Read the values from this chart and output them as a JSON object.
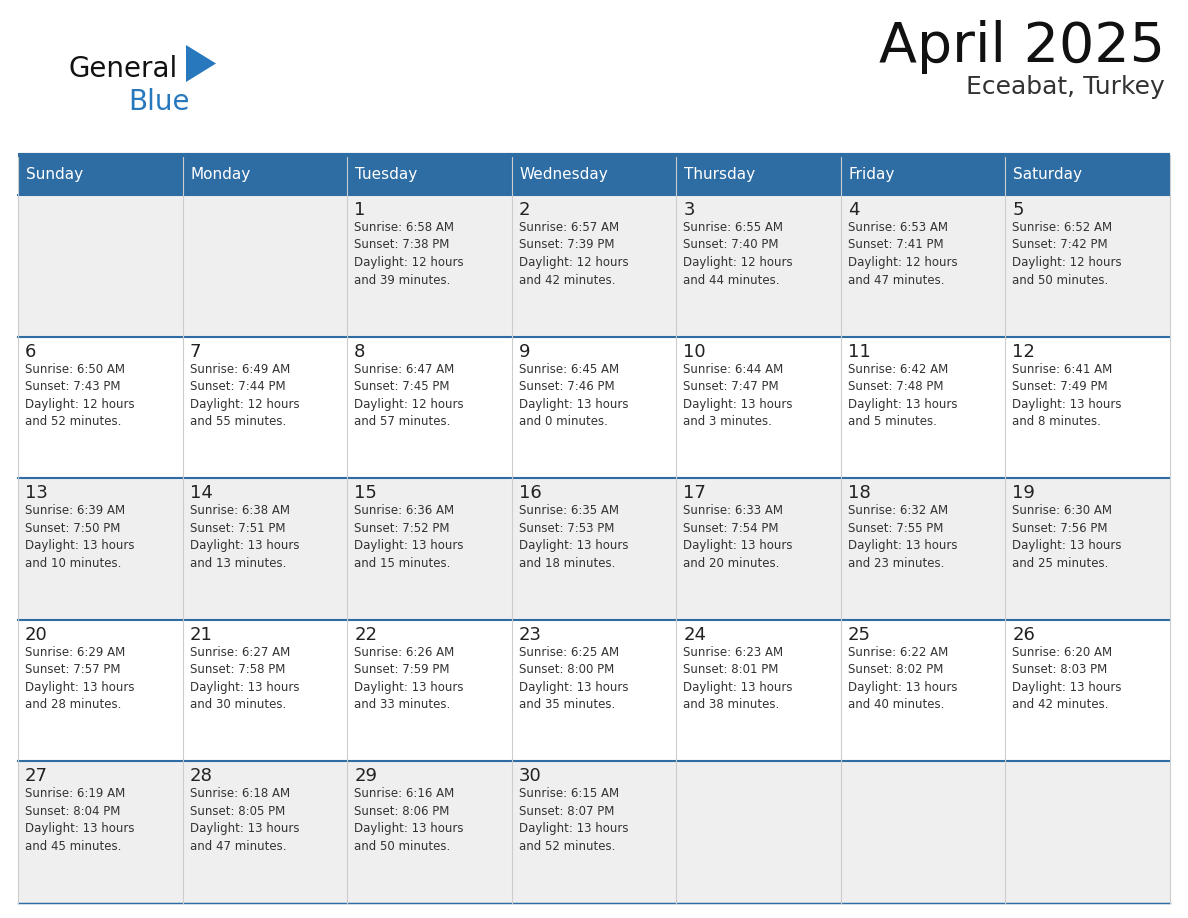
{
  "title": "April 2025",
  "subtitle": "Eceabat, Turkey",
  "header_bg": "#2E6DA4",
  "header_text": "#FFFFFF",
  "cell_bg_odd": "#EFEFEF",
  "cell_bg_even": "#FFFFFF",
  "day_number_color": "#222222",
  "text_color": "#333333",
  "border_color": "#2E6DA4",
  "row_line_color": "#2E6DA4",
  "col_line_color": "#CCCCCC",
  "days_of_week": [
    "Sunday",
    "Monday",
    "Tuesday",
    "Wednesday",
    "Thursday",
    "Friday",
    "Saturday"
  ],
  "calendar": [
    [
      {
        "day": null,
        "info": null
      },
      {
        "day": null,
        "info": null
      },
      {
        "day": 1,
        "info": "Sunrise: 6:58 AM\nSunset: 7:38 PM\nDaylight: 12 hours\nand 39 minutes."
      },
      {
        "day": 2,
        "info": "Sunrise: 6:57 AM\nSunset: 7:39 PM\nDaylight: 12 hours\nand 42 minutes."
      },
      {
        "day": 3,
        "info": "Sunrise: 6:55 AM\nSunset: 7:40 PM\nDaylight: 12 hours\nand 44 minutes."
      },
      {
        "day": 4,
        "info": "Sunrise: 6:53 AM\nSunset: 7:41 PM\nDaylight: 12 hours\nand 47 minutes."
      },
      {
        "day": 5,
        "info": "Sunrise: 6:52 AM\nSunset: 7:42 PM\nDaylight: 12 hours\nand 50 minutes."
      }
    ],
    [
      {
        "day": 6,
        "info": "Sunrise: 6:50 AM\nSunset: 7:43 PM\nDaylight: 12 hours\nand 52 minutes."
      },
      {
        "day": 7,
        "info": "Sunrise: 6:49 AM\nSunset: 7:44 PM\nDaylight: 12 hours\nand 55 minutes."
      },
      {
        "day": 8,
        "info": "Sunrise: 6:47 AM\nSunset: 7:45 PM\nDaylight: 12 hours\nand 57 minutes."
      },
      {
        "day": 9,
        "info": "Sunrise: 6:45 AM\nSunset: 7:46 PM\nDaylight: 13 hours\nand 0 minutes."
      },
      {
        "day": 10,
        "info": "Sunrise: 6:44 AM\nSunset: 7:47 PM\nDaylight: 13 hours\nand 3 minutes."
      },
      {
        "day": 11,
        "info": "Sunrise: 6:42 AM\nSunset: 7:48 PM\nDaylight: 13 hours\nand 5 minutes."
      },
      {
        "day": 12,
        "info": "Sunrise: 6:41 AM\nSunset: 7:49 PM\nDaylight: 13 hours\nand 8 minutes."
      }
    ],
    [
      {
        "day": 13,
        "info": "Sunrise: 6:39 AM\nSunset: 7:50 PM\nDaylight: 13 hours\nand 10 minutes."
      },
      {
        "day": 14,
        "info": "Sunrise: 6:38 AM\nSunset: 7:51 PM\nDaylight: 13 hours\nand 13 minutes."
      },
      {
        "day": 15,
        "info": "Sunrise: 6:36 AM\nSunset: 7:52 PM\nDaylight: 13 hours\nand 15 minutes."
      },
      {
        "day": 16,
        "info": "Sunrise: 6:35 AM\nSunset: 7:53 PM\nDaylight: 13 hours\nand 18 minutes."
      },
      {
        "day": 17,
        "info": "Sunrise: 6:33 AM\nSunset: 7:54 PM\nDaylight: 13 hours\nand 20 minutes."
      },
      {
        "day": 18,
        "info": "Sunrise: 6:32 AM\nSunset: 7:55 PM\nDaylight: 13 hours\nand 23 minutes."
      },
      {
        "day": 19,
        "info": "Sunrise: 6:30 AM\nSunset: 7:56 PM\nDaylight: 13 hours\nand 25 minutes."
      }
    ],
    [
      {
        "day": 20,
        "info": "Sunrise: 6:29 AM\nSunset: 7:57 PM\nDaylight: 13 hours\nand 28 minutes."
      },
      {
        "day": 21,
        "info": "Sunrise: 6:27 AM\nSunset: 7:58 PM\nDaylight: 13 hours\nand 30 minutes."
      },
      {
        "day": 22,
        "info": "Sunrise: 6:26 AM\nSunset: 7:59 PM\nDaylight: 13 hours\nand 33 minutes."
      },
      {
        "day": 23,
        "info": "Sunrise: 6:25 AM\nSunset: 8:00 PM\nDaylight: 13 hours\nand 35 minutes."
      },
      {
        "day": 24,
        "info": "Sunrise: 6:23 AM\nSunset: 8:01 PM\nDaylight: 13 hours\nand 38 minutes."
      },
      {
        "day": 25,
        "info": "Sunrise: 6:22 AM\nSunset: 8:02 PM\nDaylight: 13 hours\nand 40 minutes."
      },
      {
        "day": 26,
        "info": "Sunrise: 6:20 AM\nSunset: 8:03 PM\nDaylight: 13 hours\nand 42 minutes."
      }
    ],
    [
      {
        "day": 27,
        "info": "Sunrise: 6:19 AM\nSunset: 8:04 PM\nDaylight: 13 hours\nand 45 minutes."
      },
      {
        "day": 28,
        "info": "Sunrise: 6:18 AM\nSunset: 8:05 PM\nDaylight: 13 hours\nand 47 minutes."
      },
      {
        "day": 29,
        "info": "Sunrise: 6:16 AM\nSunset: 8:06 PM\nDaylight: 13 hours\nand 50 minutes."
      },
      {
        "day": 30,
        "info": "Sunrise: 6:15 AM\nSunset: 8:07 PM\nDaylight: 13 hours\nand 52 minutes."
      },
      {
        "day": null,
        "info": null
      },
      {
        "day": null,
        "info": null
      },
      {
        "day": null,
        "info": null
      }
    ]
  ],
  "logo_general_color": "#111111",
  "logo_blue_color": "#2878BE",
  "logo_triangle_color": "#2878BE",
  "title_fontsize": 40,
  "subtitle_fontsize": 18,
  "header_fontsize": 11,
  "day_num_fontsize": 13,
  "info_fontsize": 8.5
}
